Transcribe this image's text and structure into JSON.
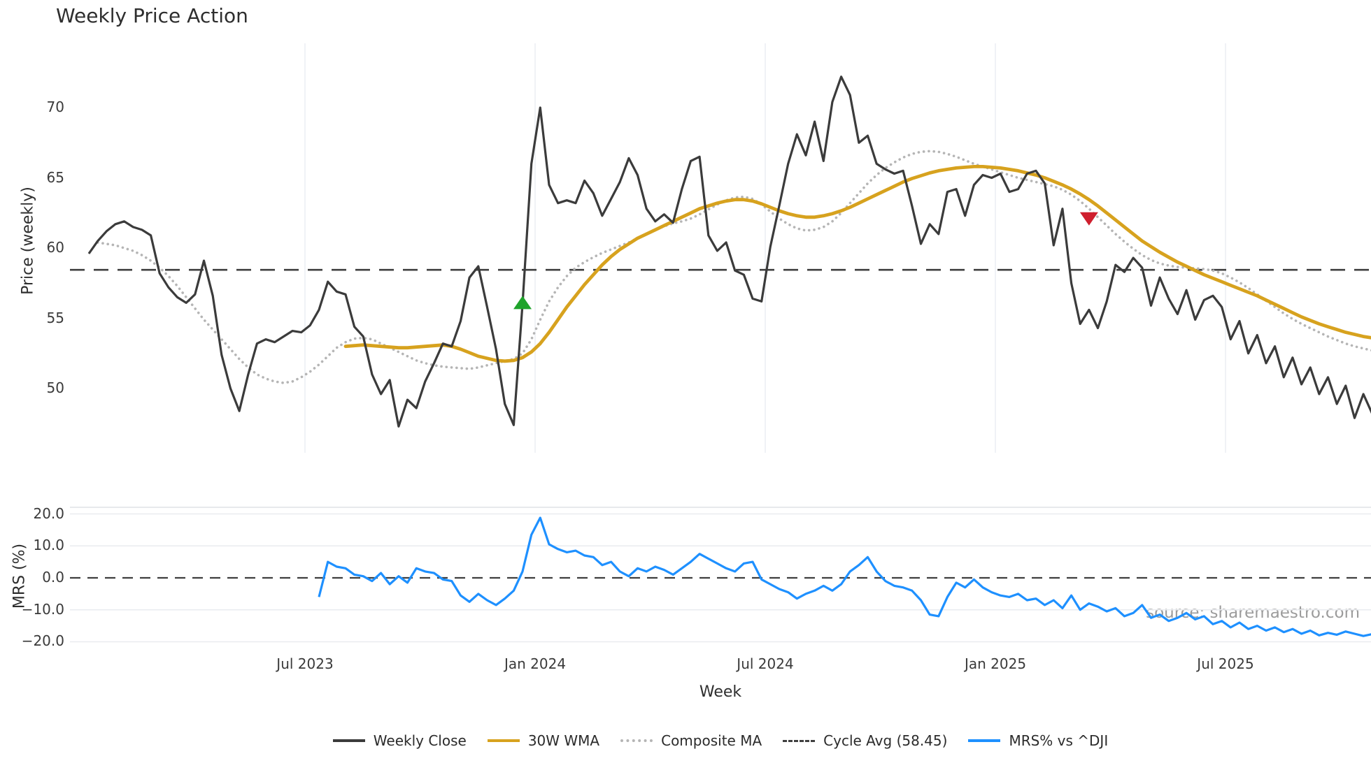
{
  "title": "Weekly Price Action",
  "watermark": "source: sharemaestro.com",
  "axes": {
    "price_label": "Price (weekly)",
    "mrs_label": "MRS (%)",
    "week_label": "Week",
    "price_ticks": [
      "70",
      "65",
      "60",
      "55",
      "50"
    ],
    "mrs_ticks": [
      "20.0",
      "10.0",
      "0.0",
      "−10.0",
      "−20.0"
    ],
    "x_ticks": [
      "Jul 2023",
      "Jan 2024",
      "Jul 2024",
      "Jan 2025",
      "Jul 2025"
    ]
  },
  "legend": {
    "items": [
      {
        "label": "Weekly Close",
        "color": "#3b3b3b",
        "style": "solid"
      },
      {
        "label": "30W WMA",
        "color": "#d7a21e",
        "style": "solid"
      },
      {
        "label": "Composite MA",
        "color": "#b5b5b5",
        "style": "dotted"
      },
      {
        "label": "Cycle Avg (58.45)",
        "color": "#3f3f3f",
        "style": "dashed"
      },
      {
        "label": "MRS% vs ^DJI",
        "color": "#1e90ff",
        "style": "solid"
      }
    ]
  },
  "chart_data": {
    "type": "line",
    "title": "Weekly Price Action",
    "x": {
      "label": "Week",
      "unit": "weekly index starting mid-Jan 2023",
      "total_weeks": 146,
      "tick_weeks": [
        24.42,
        50.42,
        76.42,
        102.42,
        128.42
      ],
      "tick_labels": [
        "Jul 2023",
        "Jan 2024",
        "Jul 2024",
        "Jan 2025",
        "Jul 2025"
      ]
    },
    "panels": [
      {
        "name": "price",
        "ylabel": "Price (weekly)",
        "ylim": [
          45.4,
          74.6
        ],
        "yticks": [
          70,
          65,
          60,
          55,
          50
        ],
        "grid": "vertical-only",
        "cycle_avg": 58.45,
        "series": [
          {
            "name": "Weekly Close",
            "color": "#3b3b3b",
            "style": "solid",
            "start_week": 0,
            "values": [
              59.6,
              60.5,
              61.2,
              61.7,
              61.9,
              61.5,
              61.3,
              60.9,
              58.2,
              57.2,
              56.5,
              56.1,
              56.7,
              59.1,
              56.6,
              52.4,
              50.0,
              48.4,
              51.0,
              53.2,
              53.5,
              53.3,
              53.7,
              54.1,
              54.0,
              54.5,
              55.6,
              57.6,
              56.9,
              56.7,
              54.4,
              53.7,
              51.0,
              49.6,
              50.6,
              47.3,
              49.2,
              48.6,
              50.5,
              51.8,
              53.2,
              53.0,
              54.8,
              57.9,
              58.7,
              55.8,
              52.8,
              48.9,
              47.4,
              56.0,
              66.0,
              70.0,
              64.5,
              63.2,
              63.4,
              63.2,
              64.8,
              63.9,
              62.3,
              63.5,
              64.7,
              66.4,
              65.2,
              62.8,
              61.9,
              62.4,
              61.8,
              64.2,
              66.2,
              66.5,
              60.9,
              59.8,
              60.4,
              58.4,
              58.1,
              56.4,
              56.2,
              60.1,
              63.0,
              66.0,
              68.1,
              66.6,
              69.0,
              66.2,
              70.4,
              72.2,
              70.9,
              67.5,
              68.0,
              66.0,
              65.6,
              65.3,
              65.5,
              63.0,
              60.3,
              61.7,
              61.0,
              64.0,
              64.2,
              62.3,
              64.5,
              65.2,
              65.0,
              65.3,
              64.0,
              64.2,
              65.3,
              65.5,
              64.6,
              60.2,
              62.8,
              57.5,
              54.6,
              55.6,
              54.3,
              56.2,
              58.8,
              58.3,
              59.3,
              58.6,
              55.9,
              57.9,
              56.4,
              55.3,
              57.0,
              54.9,
              56.3,
              56.6,
              55.8,
              53.5,
              54.8,
              52.5,
              53.8,
              51.8,
              53.0,
              50.8,
              52.2,
              50.3,
              51.5,
              49.6,
              50.8,
              48.9,
              50.2,
              47.9,
              49.6,
              48.2
            ]
          },
          {
            "name": "30W WMA",
            "color": "#d7a21e",
            "style": "solid",
            "start_week": 29,
            "values": [
              53.0,
              53.05,
              53.1,
              53.05,
              53.0,
              52.95,
              52.9,
              52.9,
              52.95,
              53.0,
              53.05,
              53.1,
              53.0,
              52.8,
              52.55,
              52.3,
              52.15,
              52.0,
              51.95,
              52.0,
              52.2,
              52.6,
              53.2,
              54.0,
              54.9,
              55.8,
              56.6,
              57.4,
              58.1,
              58.8,
              59.4,
              59.9,
              60.3,
              60.7,
              61.0,
              61.3,
              61.6,
              61.9,
              62.2,
              62.5,
              62.8,
              63.0,
              63.2,
              63.35,
              63.45,
              63.45,
              63.35,
              63.15,
              62.9,
              62.65,
              62.45,
              62.3,
              62.2,
              62.2,
              62.3,
              62.45,
              62.65,
              62.9,
              63.2,
              63.5,
              63.8,
              64.1,
              64.4,
              64.7,
              64.95,
              65.15,
              65.35,
              65.5,
              65.6,
              65.7,
              65.75,
              65.8,
              65.8,
              65.75,
              65.7,
              65.6,
              65.5,
              65.35,
              65.2,
              65.0,
              64.75,
              64.5,
              64.2,
              63.85,
              63.45,
              63.0,
              62.5,
              62.0,
              61.5,
              61.0,
              60.5,
              60.1,
              59.7,
              59.35,
              59.0,
              58.7,
              58.4,
              58.1,
              57.85,
              57.6,
              57.35,
              57.1,
              56.85,
              56.6,
              56.3,
              56.0,
              55.7,
              55.4,
              55.1,
              54.85,
              54.6,
              54.4,
              54.2,
              54.0,
              53.85,
              53.7,
              53.6
            ]
          },
          {
            "name": "Composite MA",
            "color": "#b5b5b5",
            "style": "dotted",
            "start_week": 1,
            "values": [
              60.4,
              60.3,
              60.2,
              60.0,
              59.8,
              59.5,
              59.1,
              58.6,
              58.0,
              57.3,
              56.5,
              55.7,
              54.9,
              54.2,
              53.5,
              52.8,
              52.1,
              51.5,
              51.0,
              50.7,
              50.5,
              50.4,
              50.5,
              50.8,
              51.2,
              51.7,
              52.3,
              52.9,
              53.3,
              53.55,
              53.6,
              53.5,
              53.2,
              52.9,
              52.6,
              52.3,
              52.0,
              51.8,
              51.65,
              51.55,
              51.5,
              51.45,
              51.4,
              51.5,
              51.65,
              51.8,
              51.95,
              52.1,
              52.5,
              53.5,
              54.9,
              56.2,
              57.2,
              58.0,
              58.6,
              59.0,
              59.35,
              59.65,
              59.9,
              60.15,
              60.4,
              60.7,
              61.0,
              61.3,
              61.55,
              61.75,
              61.9,
              62.1,
              62.4,
              62.75,
              63.1,
              63.4,
              63.6,
              63.65,
              63.5,
              63.1,
              62.6,
              62.1,
              61.7,
              61.4,
              61.25,
              61.3,
              61.5,
              61.9,
              62.5,
              63.2,
              63.9,
              64.6,
              65.2,
              65.7,
              66.1,
              66.45,
              66.7,
              66.85,
              66.9,
              66.85,
              66.7,
              66.5,
              66.25,
              66.0,
              65.8,
              65.6,
              65.4,
              65.2,
              65.0,
              64.85,
              64.7,
              64.55,
              64.4,
              64.15,
              63.8,
              63.35,
              62.8,
              62.2,
              61.6,
              61.0,
              60.45,
              59.95,
              59.5,
              59.15,
              58.9,
              58.75,
              58.65,
              58.6,
              58.55,
              58.5,
              58.4,
              58.2,
              57.9,
              57.55,
              57.15,
              56.7,
              56.25,
              55.8,
              55.35,
              54.95,
              54.6,
              54.3,
              54.0,
              53.7,
              53.45,
              53.2,
              53.0,
              52.85,
              52.7
            ]
          },
          {
            "name": "Cycle Avg",
            "color": "#3f3f3f",
            "style": "dashed",
            "constant": 58.45
          }
        ],
        "markers": [
          {
            "shape": "triangle-up",
            "color": "#1fa32b",
            "week": 49,
            "price": 56.1
          },
          {
            "shape": "triangle-down",
            "color": "#cf1f2e",
            "week": 113,
            "price": 62.1
          }
        ]
      },
      {
        "name": "mrs",
        "ylabel": "MRS (%)",
        "ylim": [
          -22.5,
          22.1
        ],
        "yticks": [
          20,
          10,
          0,
          -10,
          -20
        ],
        "grid": "horizontal-only",
        "zero_line": 0,
        "series": [
          {
            "name": "MRS% vs ^DJI",
            "color": "#1e90ff",
            "style": "solid",
            "start_week": 26,
            "values": [
              -6,
              5,
              3.5,
              3,
              1,
              0.5,
              -1,
              1.5,
              -2,
              0.5,
              -1.5,
              3,
              2,
              1.5,
              -0.5,
              -1,
              -5.5,
              -7.5,
              -5,
              -7,
              -8.5,
              -6.5,
              -4,
              2,
              13.5,
              18.8,
              10.5,
              9,
              8,
              8.5,
              7,
              6.5,
              4,
              5,
              2,
              0.5,
              3,
              2,
              3.5,
              2.5,
              1,
              3,
              5,
              7.5,
              6,
              4.5,
              3,
              2,
              4.5,
              5,
              -0.5,
              -2,
              -3.5,
              -4.5,
              -6.5,
              -5,
              -4,
              -2.5,
              -4,
              -2,
              2,
              4,
              6.5,
              2,
              -1,
              -2.5,
              -3,
              -4,
              -7,
              -11.5,
              -12,
              -6,
              -1.5,
              -3,
              -0.5,
              -3,
              -4.5,
              -5.5,
              -6,
              -5,
              -7,
              -6.5,
              -8.5,
              -7,
              -9.5,
              -5.5,
              -10,
              -8,
              -9,
              -10.5,
              -9.5,
              -12,
              -11,
              -8.5,
              -12.5,
              -11.5,
              -13.5,
              -12.5,
              -11,
              -13,
              -12,
              -14.5,
              -13.5,
              -15.5,
              -14,
              -16,
              -15,
              -16.5,
              -15.5,
              -17,
              -16,
              -17.5,
              -16.5,
              -18,
              -17.2,
              -17.8,
              -16.8,
              -17.5,
              -18.2,
              -17.6
            ]
          }
        ]
      }
    ]
  }
}
